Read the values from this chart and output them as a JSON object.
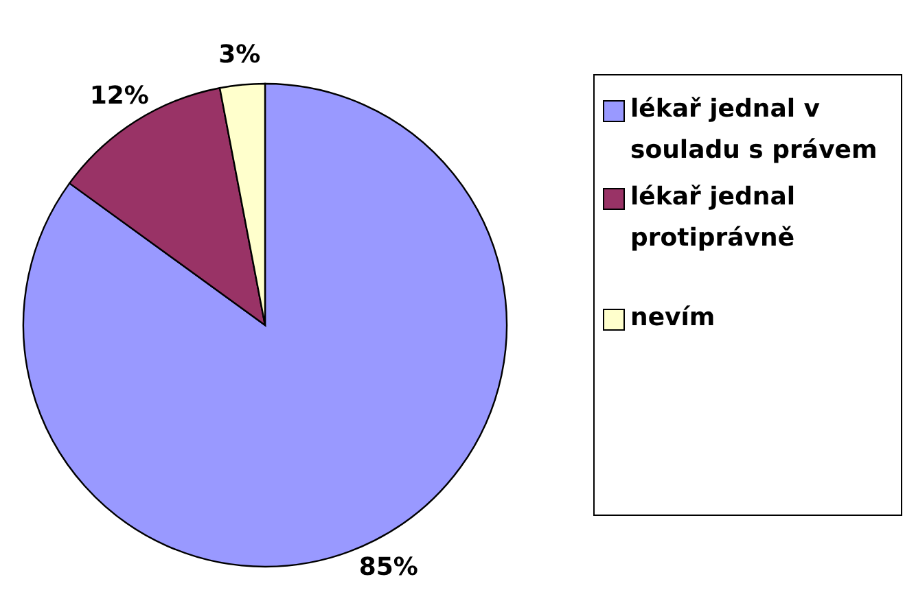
{
  "chart_data": {
    "type": "pie",
    "categories": [
      "lékař jednal v souladu s právem",
      "lékař jednal protiprávně",
      "nevím"
    ],
    "values": [
      85,
      12,
      3
    ],
    "colors": [
      "#9999ff",
      "#993366",
      "#ffffcc"
    ],
    "value_labels": [
      "85%",
      "12%",
      "3%"
    ],
    "legend": "right"
  }
}
